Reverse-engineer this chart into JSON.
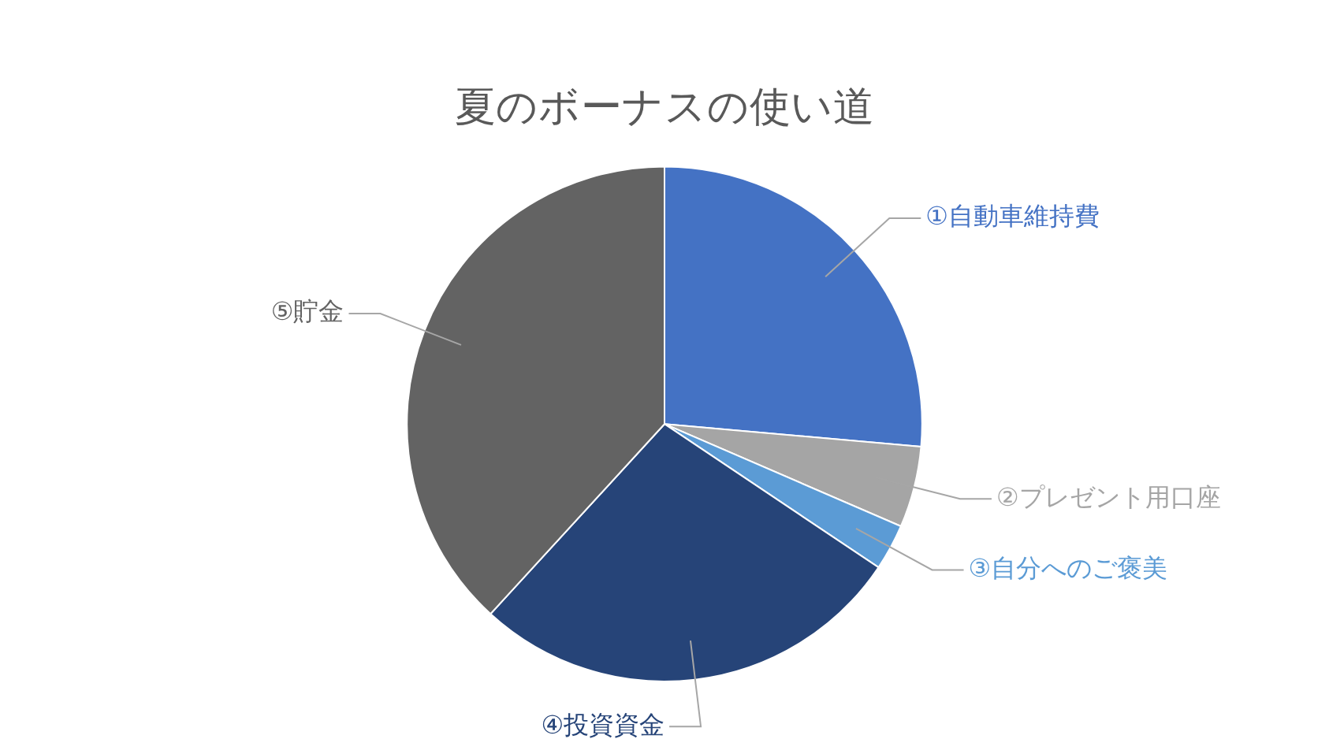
{
  "chart_data": {
    "type": "pie",
    "title": "夏のボーナスの使い道",
    "categories": [
      "①自動車維持費",
      "②プレゼント用口座",
      "③自分へのご褒美",
      "④投資資金",
      "⑤貯金"
    ],
    "values": [
      26.4,
      5.1,
      2.9,
      27.4,
      38.2
    ],
    "colors": [
      "#4472c4",
      "#a5a5a5",
      "#5b9bd5",
      "#264478",
      "#636363"
    ],
    "legend": false
  }
}
